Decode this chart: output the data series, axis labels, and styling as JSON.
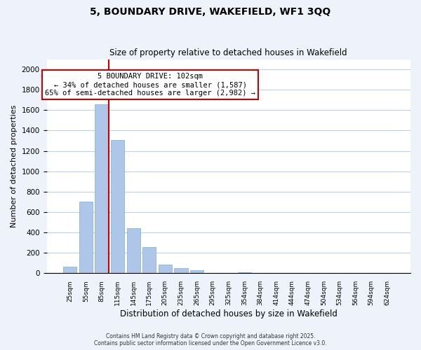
{
  "title": "5, BOUNDARY DRIVE, WAKEFIELD, WF1 3QQ",
  "subtitle": "Size of property relative to detached houses in Wakefield",
  "xlabel": "Distribution of detached houses by size in Wakefield",
  "ylabel": "Number of detached properties",
  "bar_values": [
    65,
    700,
    1660,
    1310,
    440,
    255,
    88,
    52,
    28,
    0,
    0,
    8,
    0,
    0,
    0,
    0,
    0,
    0,
    0,
    0,
    0
  ],
  "categories": [
    "25sqm",
    "55sqm",
    "85sqm",
    "115sqm",
    "145sqm",
    "175sqm",
    "205sqm",
    "235sqm",
    "265sqm",
    "295sqm",
    "325sqm",
    "354sqm",
    "384sqm",
    "414sqm",
    "444sqm",
    "474sqm",
    "504sqm",
    "534sqm",
    "564sqm",
    "594sqm",
    "624sqm"
  ],
  "bar_color": "#aec6e8",
  "bar_edge_color": "#7fafd4",
  "annotation_box_color": "#cc0000",
  "annotation_text_line1": "5 BOUNDARY DRIVE: 102sqm",
  "annotation_text_line2": "← 34% of detached houses are smaller (1,587)",
  "annotation_text_line3": "65% of semi-detached houses are larger (2,982) →",
  "vertical_line_x": 2,
  "vertical_line_color": "#cc0000",
  "ylim": [
    0,
    2100
  ],
  "yticks": [
    0,
    200,
    400,
    600,
    800,
    1000,
    1200,
    1400,
    1600,
    1800,
    2000
  ],
  "footer_line1": "Contains HM Land Registry data © Crown copyright and database right 2025.",
  "footer_line2": "Contains public sector information licensed under the Open Government Licence v3.0.",
  "background_color": "#eef2fb",
  "plot_background": "#ffffff"
}
